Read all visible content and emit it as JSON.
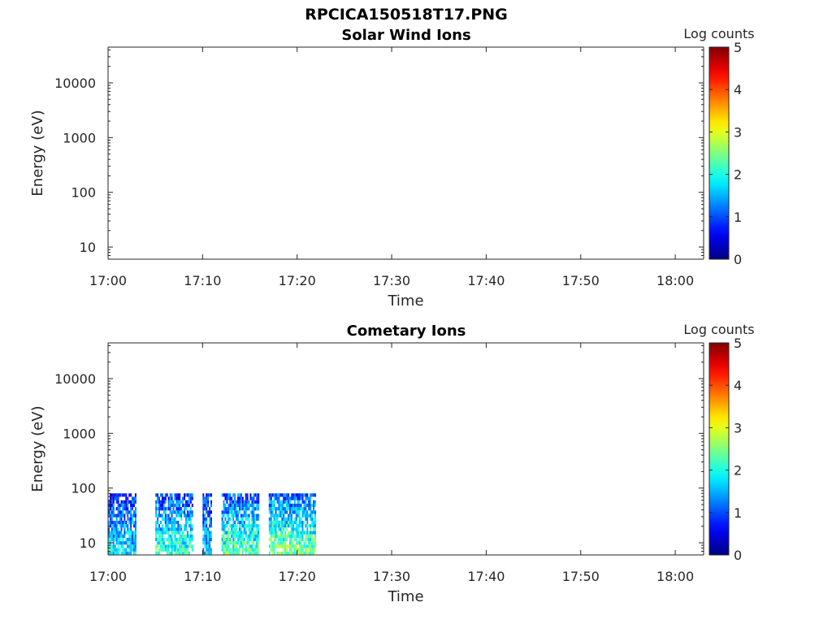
{
  "figure": {
    "title": "RPCICA150518T17.PNG"
  },
  "chart_data": [
    {
      "type": "heatmap",
      "title": "Solar Wind Ions",
      "xlabel": "Time",
      "ylabel": "Energy (eV)",
      "x_ticks": [
        "17:00",
        "17:10",
        "17:20",
        "17:30",
        "17:40",
        "17:50",
        "18:00"
      ],
      "xlim": [
        "17:00",
        "18:03"
      ],
      "y_ticks": [
        "10",
        "100",
        "1000",
        "10000"
      ],
      "ylim": [
        6,
        45000
      ],
      "y_scale": "log",
      "colorbar": {
        "label": "Log counts",
        "ticks": [
          "0",
          "1",
          "2",
          "3",
          "4",
          "5"
        ],
        "range": [
          0,
          5
        ],
        "colormap": "jet"
      },
      "data_extent": null,
      "cells": []
    },
    {
      "type": "heatmap",
      "title": "Cometary Ions",
      "xlabel": "Time",
      "ylabel": "Energy (eV)",
      "x_ticks": [
        "17:00",
        "17:10",
        "17:20",
        "17:30",
        "17:40",
        "17:50",
        "18:00"
      ],
      "xlim": [
        "17:00",
        "18:03"
      ],
      "y_ticks": [
        "10",
        "100",
        "1000",
        "10000"
      ],
      "ylim": [
        6,
        45000
      ],
      "y_scale": "log",
      "colorbar": {
        "label": "Log counts",
        "ticks": [
          "0",
          "1",
          "2",
          "3",
          "4",
          "5"
        ],
        "range": [
          0,
          5
        ],
        "colormap": "jet"
      },
      "data_extent": {
        "time": [
          "17:00",
          "17:22"
        ],
        "energy_ev": [
          6,
          80
        ]
      },
      "bursts": [
        {
          "time": [
            "17:00",
            "17:03"
          ],
          "level": 2.0
        },
        {
          "time": [
            "17:05",
            "17:09"
          ],
          "level": 2.4
        },
        {
          "time": [
            "17:10",
            "17:11"
          ],
          "level": 1.9
        },
        {
          "time": [
            "17:12",
            "17:16"
          ],
          "level": 2.6
        },
        {
          "time": [
            "17:17",
            "17:22"
          ],
          "level": 2.8
        }
      ]
    }
  ]
}
